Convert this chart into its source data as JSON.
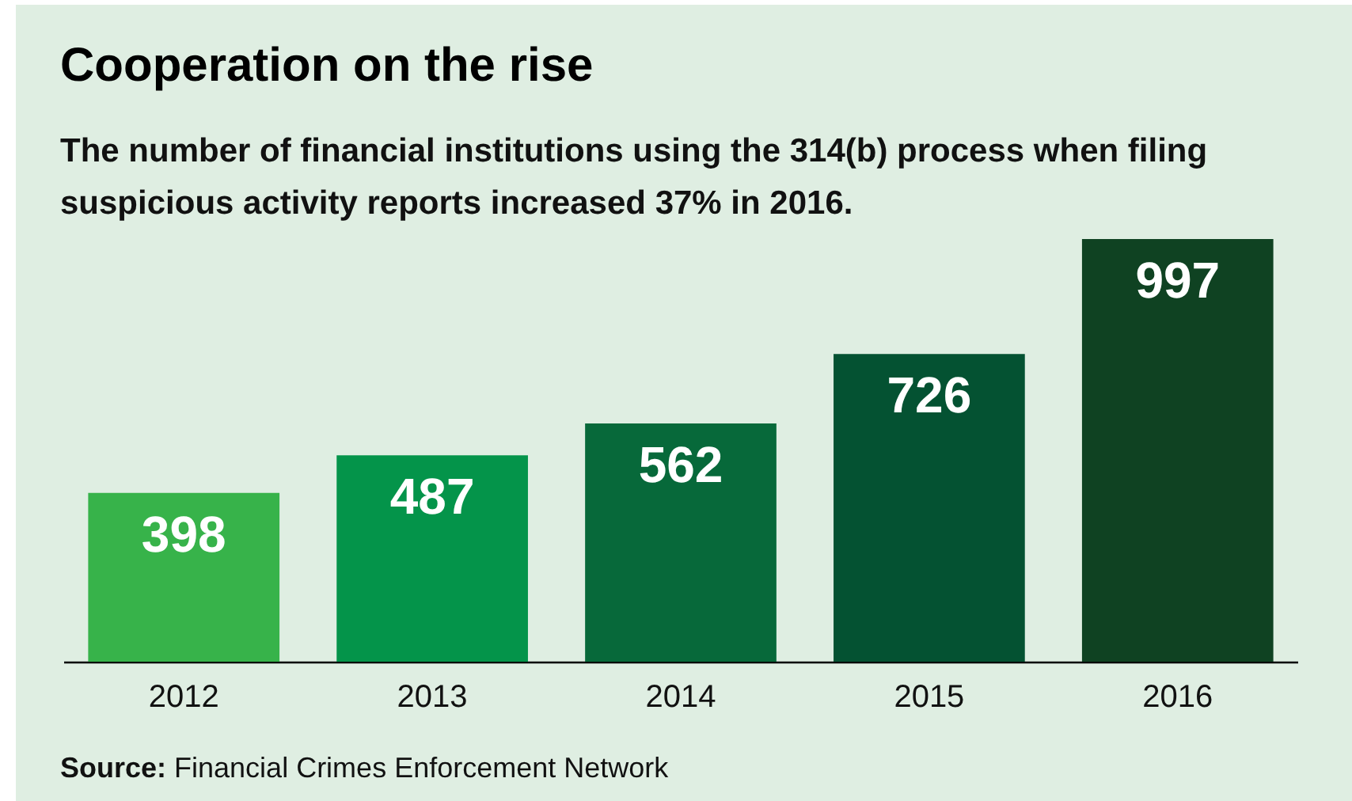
{
  "chart_data": {
    "type": "bar",
    "title": "Cooperation on the rise",
    "subtitle": "The number of financial institutions using the 314(b) process when filing suspicious activity reports increased 37% in 2016.",
    "categories": [
      "2012",
      "2013",
      "2014",
      "2015",
      "2016"
    ],
    "values": [
      398,
      487,
      562,
      726,
      997
    ],
    "colors": [
      "#37b34a",
      "#04944a",
      "#07693a",
      "#045232",
      "#0f4222"
    ],
    "data_labels": true,
    "annotations": [
      "Source: Financial Crimes Enforcement Network"
    ]
  }
}
